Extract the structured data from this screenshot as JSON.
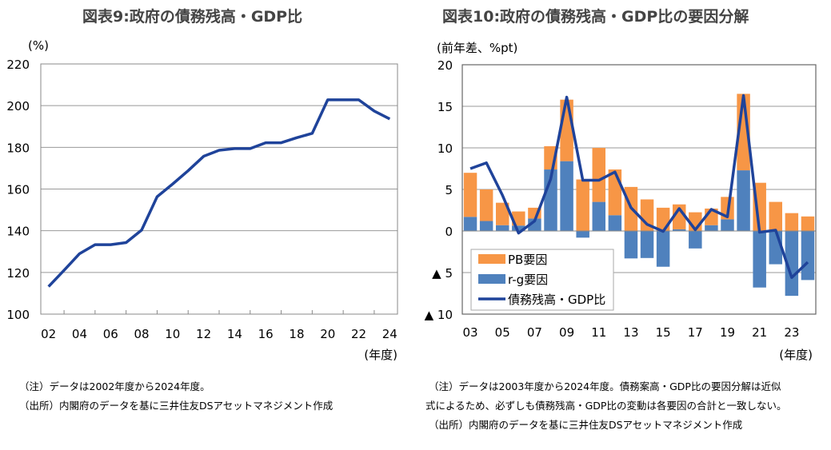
{
  "chart_data": [
    {
      "type": "line",
      "title": "図表9:政府の債務残高・GDP比",
      "ylabel": "(%)",
      "xlabel": "(年度)",
      "ylim": [
        100,
        220
      ],
      "yticks": [
        100,
        120,
        140,
        160,
        180,
        200,
        220
      ],
      "grid": true,
      "x": [
        "02",
        "03",
        "04",
        "05",
        "06",
        "07",
        "08",
        "09",
        "10",
        "11",
        "12",
        "13",
        "14",
        "15",
        "16",
        "17",
        "18",
        "19",
        "20",
        "21",
        "22",
        "23",
        "24"
      ],
      "xtick_labels": [
        "02",
        "04",
        "06",
        "08",
        "10",
        "12",
        "14",
        "16",
        "18",
        "20",
        "22",
        "24"
      ],
      "values": [
        113.2,
        121,
        129,
        133.3,
        133.3,
        134.3,
        140.3,
        156.3,
        162.4,
        168.8,
        175.7,
        178.6,
        179.4,
        179.4,
        182.2,
        182.2,
        184.6,
        186.7,
        202.8,
        202.8,
        202.8,
        197.4,
        193.6
      ],
      "color": "#1f439a"
    },
    {
      "type": "bar",
      "stacked": true,
      "title": "図表10:政府の債務残高・GDP比の要因分解",
      "ylabel": "(前年差、%pt)",
      "xlabel": "(年度)",
      "ylim": [
        -10,
        20
      ],
      "yticks": [
        20,
        15,
        10,
        5,
        0,
        -5,
        -10
      ],
      "ytick_labels": [
        "20",
        "15",
        "10",
        "5",
        "0",
        "▲ 5",
        "▲ 10"
      ],
      "grid": true,
      "legend": "bottom-left",
      "x": [
        "03",
        "04",
        "05",
        "06",
        "07",
        "08",
        "09",
        "10",
        "11",
        "12",
        "13",
        "14",
        "15",
        "16",
        "17",
        "18",
        "19",
        "20",
        "21",
        "22",
        "23",
        "24"
      ],
      "xtick_labels": [
        "03",
        "05",
        "07",
        "09",
        "11",
        "13",
        "15",
        "17",
        "19",
        "21",
        "23"
      ],
      "series": [
        {
          "name": "PB要因",
          "type": "bar",
          "color": "#f79646",
          "values": [
            5.3,
            3.8,
            2.7,
            1.7,
            1.3,
            2.8,
            7.4,
            6.2,
            6.5,
            5.5,
            5.3,
            3.8,
            2.8,
            3.0,
            2.25,
            2.0,
            2.7,
            9.2,
            5.8,
            3.5,
            2.15,
            1.75
          ]
        },
        {
          "name": "r-g要因",
          "type": "bar",
          "color": "#4f81bd",
          "values": [
            1.7,
            1.2,
            0.7,
            0.65,
            1.5,
            7.4,
            8.4,
            -0.8,
            3.5,
            1.9,
            -3.3,
            -3.25,
            -4.3,
            0.2,
            -2.1,
            0.7,
            1.4,
            7.3,
            -6.8,
            -4.0,
            -7.8,
            -5.9
          ]
        },
        {
          "name": "債務残高・GDP比",
          "type": "line",
          "color": "#1f439a",
          "values": [
            7.5,
            8.2,
            4.3,
            -0.25,
            1.2,
            6.25,
            16.1,
            6.1,
            6.1,
            7.1,
            2.8,
            0.8,
            -0.05,
            2.7,
            0.15,
            2.6,
            1.7,
            16.3,
            -0.15,
            0.1,
            -5.6,
            -3.75
          ]
        }
      ]
    }
  ],
  "notes_left": [
    "（注）データは2002年度から2024年度。",
    "（出所）内閣府のデータを基に三井住友DSアセットマネジメント作成"
  ],
  "notes_right": [
    "（注）データは2003年度から2024年度。債務案高・GDP比の要因分解は近似",
    "式によるため、必ずしも債務残高・GDP比の変動は各要因の合計と一致しない。",
    "（出所）内閣府のデータを基に三井住友DSアセットマネジメント作成"
  ]
}
